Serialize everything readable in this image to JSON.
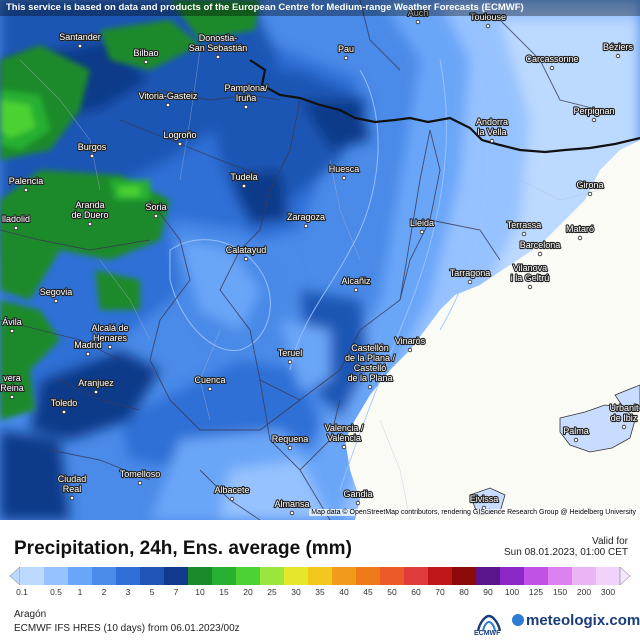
{
  "banner": "This service is based on data and products of the European Centre for Medium-range Weather Forecasts (ECMWF)",
  "attribution": "Map data © OpenStreetMap contributors, rendering GIScience Research Group @ Heidelberg University",
  "title": "Precipitation, 24h, Ens. average (mm)",
  "valid_label": "Valid for",
  "valid_date": "Sun 08.01.2023, 01:00 CET",
  "region": "Aragón",
  "model_line": "ECMWF IFS HRES (10 days) from 06.01.2023/00z",
  "logo_ecmwf": "ECMWF",
  "logo_meteologix": "meteologix.com",
  "legend": {
    "levels": [
      "0.1",
      "0.5",
      "1",
      "2",
      "3",
      "5",
      "7",
      "10",
      "15",
      "20",
      "25",
      "30",
      "35",
      "40",
      "45",
      "50",
      "60",
      "70",
      "80",
      "90",
      "100",
      "125",
      "150",
      "200",
      "300"
    ],
    "colors": [
      "#bcd9ff",
      "#96c2ff",
      "#6aa6f8",
      "#4a8ae8",
      "#2f6fd6",
      "#1f56b5",
      "#113a8a",
      "#1a8a2a",
      "#28b030",
      "#4cd232",
      "#9be63c",
      "#e6e62a",
      "#f2c81e",
      "#f29a1a",
      "#ee7a1a",
      "#ec5a2a",
      "#e03c3c",
      "#c01818",
      "#8c0a0a",
      "#5a148c",
      "#8c28c8",
      "#c052e6",
      "#dc82f0",
      "#eab4f6",
      "#f0d2fa",
      "#f4e8fc"
    ]
  },
  "map": {
    "colors": {
      "sea": "#fbfbf6",
      "very_light_blue": "#bcd9ff",
      "light_blue": "#96c2ff",
      "mid_blue": "#6aa6f8",
      "blue": "#4a8ae8",
      "deep_blue": "#2f6fd6",
      "dark_blue": "#1f56b5",
      "navy": "#113a8a",
      "green": "#1a8a2a",
      "bright_green": "#28b030",
      "lime": "#4cd232"
    },
    "cities": [
      {
        "name": "Santander"
      },
      {
        "name": "Bilbao"
      },
      {
        "name": "Donostia-\nSan Sebastián"
      },
      {
        "name": "Auch"
      },
      {
        "name": "Toulouse"
      },
      {
        "name": "Pau"
      },
      {
        "name": "Carcassonne"
      },
      {
        "name": "Béziers"
      },
      {
        "name": "Vitoria-Gasteiz"
      },
      {
        "name": "Pamplona/\nIruña"
      },
      {
        "name": "Andorra\nla Vella"
      },
      {
        "name": "Perpignan"
      },
      {
        "name": "Burgos"
      },
      {
        "name": "Logroño"
      },
      {
        "name": "Palencia"
      },
      {
        "name": "Tudela"
      },
      {
        "name": "Huesca"
      },
      {
        "name": "Girona"
      },
      {
        "name": "lladolid"
      },
      {
        "name": "Aranda\nde Duero"
      },
      {
        "name": "Soria"
      },
      {
        "name": "Zaragoza"
      },
      {
        "name": "Lleida"
      },
      {
        "name": "Terrassa"
      },
      {
        "name": "Mataró"
      },
      {
        "name": "Barcelona"
      },
      {
        "name": "Calatayud"
      },
      {
        "name": "Tarragona"
      },
      {
        "name": "Vilanova\ni la Geltrú"
      },
      {
        "name": "Segovia"
      },
      {
        "name": "Alcañiz"
      },
      {
        "name": "Ávila"
      },
      {
        "name": "Alcalá de\nHenares"
      },
      {
        "name": "Madrid"
      },
      {
        "name": "Vinaròs"
      },
      {
        "name": "Teruel"
      },
      {
        "name": "Castellón\nde la Plana /\nCastelló\nde la Plana"
      },
      {
        "name": "vera\nReina"
      },
      {
        "name": "Aranjuez"
      },
      {
        "name": "Cuenca"
      },
      {
        "name": "Toledo"
      },
      {
        "name": "Urbanit\nde Ibiz"
      },
      {
        "name": "Palma"
      },
      {
        "name": "Requena"
      },
      {
        "name": "Valencia /\nValència"
      },
      {
        "name": "Tomelloso"
      },
      {
        "name": "Ciudad\nReal"
      },
      {
        "name": "Albacete"
      },
      {
        "name": "Gandia"
      },
      {
        "name": "Almansa"
      },
      {
        "name": "Eivissa"
      }
    ]
  }
}
